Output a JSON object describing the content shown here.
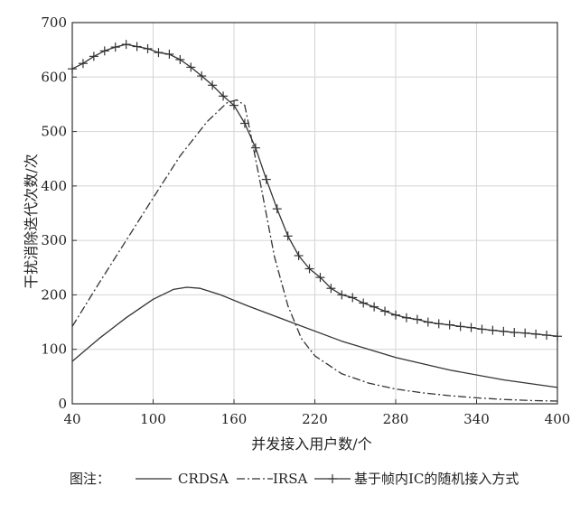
{
  "chart_data": {
    "type": "line",
    "title": "",
    "xlabel": "并发接入用户数/个",
    "ylabel": "干扰消除迭代次数/次",
    "xlim": [
      40,
      400
    ],
    "ylim": [
      0,
      700
    ],
    "xticks": [
      40,
      100,
      160,
      220,
      280,
      340,
      400
    ],
    "yticks": [
      0,
      100,
      200,
      300,
      400,
      500,
      600,
      700
    ],
    "grid": true,
    "legend_title": "图注：",
    "legend_position": "bottom",
    "colors": {
      "line": "#333333",
      "grid": "#d4d4d4",
      "axis": "#333333"
    },
    "series": [
      {
        "name": "CRDSA",
        "style": "solid",
        "marker": "none",
        "x": [
          40,
          60,
          80,
          100,
          115,
          125,
          135,
          150,
          170,
          200,
          240,
          280,
          320,
          360,
          400
        ],
        "y": [
          78,
          120,
          158,
          192,
          210,
          214,
          212,
          200,
          180,
          152,
          115,
          85,
          62,
          44,
          30
        ]
      },
      {
        "name": "IRSA",
        "style": "dashdot",
        "marker": "none",
        "x": [
          40,
          60,
          80,
          100,
          120,
          140,
          155,
          162,
          168,
          172,
          180,
          190,
          200,
          210,
          220,
          240,
          260,
          280,
          300,
          320,
          340,
          360,
          380,
          400
        ],
        "y": [
          142,
          222,
          300,
          378,
          455,
          518,
          553,
          558,
          548,
          500,
          400,
          270,
          180,
          120,
          88,
          55,
          38,
          27,
          20,
          15,
          11,
          8,
          6,
          5
        ]
      },
      {
        "name": "基于帧内IC的随机接入方式",
        "style": "solid",
        "marker": "plus",
        "x": [
          40,
          48,
          56,
          64,
          72,
          80,
          88,
          96,
          104,
          112,
          120,
          128,
          136,
          144,
          152,
          160,
          168,
          176,
          184,
          192,
          200,
          208,
          216,
          224,
          232,
          240,
          248,
          256,
          264,
          272,
          280,
          288,
          296,
          304,
          312,
          320,
          328,
          336,
          344,
          352,
          360,
          368,
          376,
          384,
          392,
          400
        ],
        "y": [
          615,
          625,
          638,
          648,
          655,
          660,
          656,
          652,
          645,
          642,
          632,
          618,
          602,
          585,
          565,
          548,
          515,
          470,
          412,
          358,
          308,
          272,
          248,
          232,
          212,
          200,
          195,
          185,
          178,
          170,
          163,
          158,
          155,
          150,
          147,
          145,
          142,
          140,
          137,
          135,
          133,
          131,
          130,
          128,
          126,
          124
        ]
      }
    ]
  }
}
